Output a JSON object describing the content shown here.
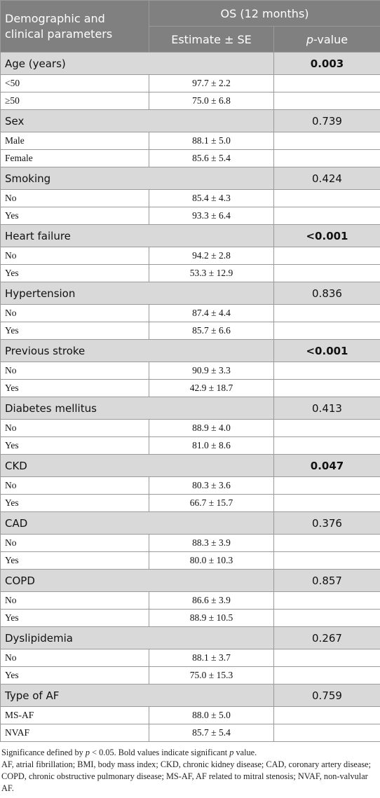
{
  "header": {
    "column1": "Demographic and clinical parameters",
    "group": "OS (12 months)",
    "column2": "Estimate ± SE",
    "column3": [
      "p",
      "-value"
    ]
  },
  "table": {
    "groups": [
      {
        "label": "Age (years)",
        "p": "0.003",
        "bold": true,
        "rows": [
          {
            "label": "<50",
            "value": "97.7 ± 2.2"
          },
          {
            "label": "≥50",
            "value": "75.0 ± 6.8"
          }
        ]
      },
      {
        "label": "Sex",
        "p": "0.739",
        "bold": false,
        "rows": [
          {
            "label": "Male",
            "value": "88.1 ± 5.0"
          },
          {
            "label": "Female",
            "value": "85.6 ± 5.4"
          }
        ]
      },
      {
        "label": "Smoking",
        "p": "0.424",
        "bold": false,
        "rows": [
          {
            "label": "No",
            "value": "85.4 ± 4.3"
          },
          {
            "label": "Yes",
            "value": "93.3 ± 6.4"
          }
        ]
      },
      {
        "label": "Heart failure",
        "p": "<0.001",
        "bold": true,
        "rows": [
          {
            "label": "No",
            "value": "94.2 ± 2.8"
          },
          {
            "label": "Yes",
            "value": "53.3 ± 12.9"
          }
        ]
      },
      {
        "label": "Hypertension",
        "p": "0.836",
        "bold": false,
        "rows": [
          {
            "label": "No",
            "value": "87.4 ± 4.4"
          },
          {
            "label": "Yes",
            "value": "85.7 ± 6.6"
          }
        ]
      },
      {
        "label": "Previous stroke",
        "p": "<0.001",
        "bold": true,
        "rows": [
          {
            "label": "No",
            "value": "90.9 ± 3.3"
          },
          {
            "label": "Yes",
            "value": "42.9 ± 18.7"
          }
        ]
      },
      {
        "label": "Diabetes mellitus",
        "p": "0.413",
        "bold": false,
        "rows": [
          {
            "label": "No",
            "value": "88.9 ± 4.0"
          },
          {
            "label": "Yes",
            "value": "81.0 ± 8.6"
          }
        ]
      },
      {
        "label": "CKD",
        "p": "0.047",
        "bold": true,
        "rows": [
          {
            "label": "No",
            "value": "80.3 ± 3.6"
          },
          {
            "label": "Yes",
            "value": "66.7 ± 15.7"
          }
        ]
      },
      {
        "label": "CAD",
        "p": "0.376",
        "bold": false,
        "rows": [
          {
            "label": "No",
            "value": "88.3 ± 3.9"
          },
          {
            "label": "Yes",
            "value": "80.0 ± 10.3"
          }
        ]
      },
      {
        "label": "COPD",
        "p": "0.857",
        "bold": false,
        "rows": [
          {
            "label": "No",
            "value": "86.6 ± 3.9"
          },
          {
            "label": "Yes",
            "value": "88.9 ± 10.5"
          }
        ]
      },
      {
        "label": "Dyslipidemia",
        "p": "0.267",
        "bold": false,
        "rows": [
          {
            "label": "No",
            "value": "88.1 ± 3.7"
          },
          {
            "label": "Yes",
            "value": "75.0 ± 15.3"
          }
        ]
      },
      {
        "label": "Type of AF",
        "p": "0.759",
        "bold": false,
        "rows": [
          {
            "label": "MS-AF",
            "value": "88.0 ± 5.0"
          },
          {
            "label": "NVAF",
            "value": "85.7 ± 5.4"
          }
        ]
      }
    ]
  },
  "footnotes": {
    "significance": [
      "Significance defined by ",
      "p",
      " < 0.05. Bold values indicate significant ",
      "p",
      " value."
    ],
    "abbreviations": "AF, atrial fibrillation; BMI, body mass index; CKD, chronic kidney disease; CAD, coronary artery disease; COPD, chronic obstructive pulmonary disease; MS-AF, AF related to mitral stenosis; NVAF, non-valvular AF."
  }
}
